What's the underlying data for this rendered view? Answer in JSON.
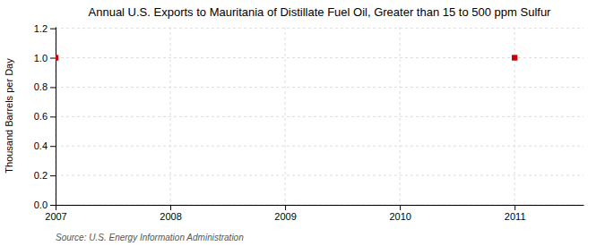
{
  "chart_data": {
    "type": "scatter",
    "title": "Annual U.S. Exports to Mauritania of Distillate Fuel Oil, Greater than 15 to 500 ppm Sulfur",
    "ylabel": "Thousand Barrels per Day",
    "source": "Source: U.S. Energy Information Administration",
    "x": [
      2007,
      2011
    ],
    "values": [
      1.0,
      1.0
    ],
    "color": "#cc0000",
    "marker": "square",
    "xlim": [
      2007,
      2011.6
    ],
    "ylim": [
      0.0,
      1.21
    ],
    "xticks": [
      2007,
      2008,
      2009,
      2010,
      2011
    ],
    "yticks": [
      {
        "value": 0.0,
        "label": "0.0"
      },
      0.2,
      0.4,
      0.6,
      0.8,
      {
        "value": 1.0,
        "label": "1.0"
      },
      1.2
    ],
    "grid": true
  }
}
